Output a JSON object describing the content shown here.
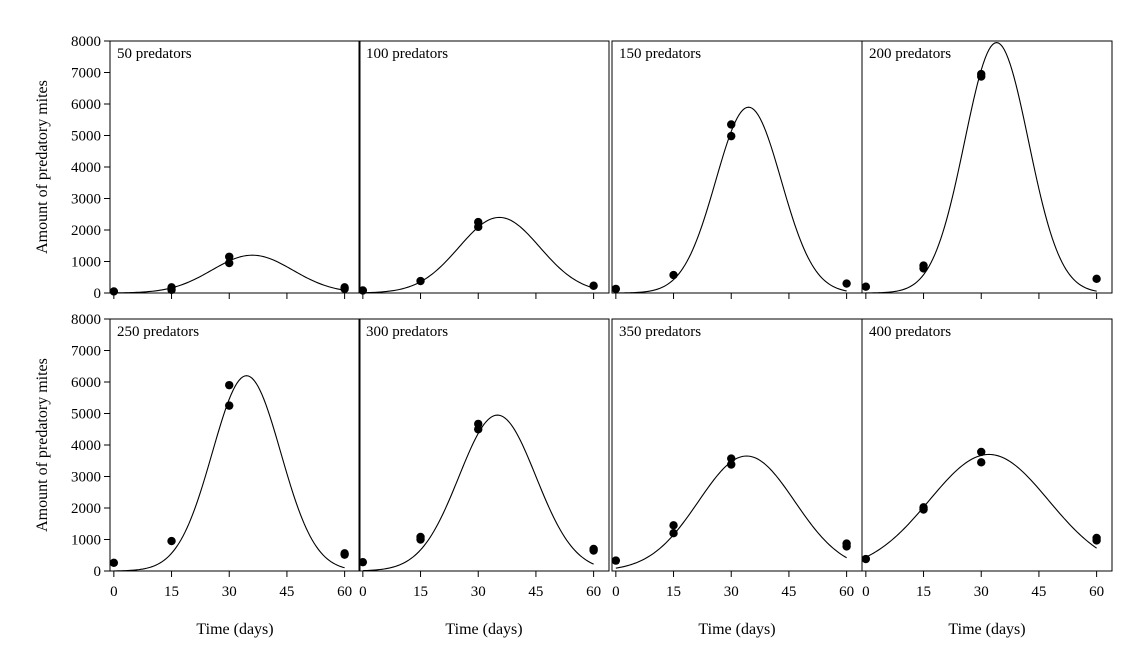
{
  "chart_data": {
    "type": "scatter",
    "ylabel": "Amount of predatory mites",
    "xlabel": "Time (days)",
    "x_ticks": [
      "0",
      "15",
      "30",
      "45",
      "60"
    ],
    "y_ticks": [
      "0",
      "1000",
      "2000",
      "3000",
      "4000",
      "5000",
      "6000",
      "7000",
      "8000"
    ],
    "xlim": [
      -1,
      64
    ],
    "ylim": [
      0,
      8000
    ],
    "colors": {
      "points": "#000000",
      "curve": "#000000",
      "frame": "#000000"
    },
    "panels": [
      {
        "title": "50 predators",
        "points": [
          [
            0,
            50
          ],
          [
            15,
            100
          ],
          [
            15,
            180
          ],
          [
            30,
            950
          ],
          [
            30,
            1150
          ],
          [
            60,
            130
          ],
          [
            60,
            180
          ]
        ],
        "curve": {
          "a": 1200,
          "mu": 36,
          "sigma": 10.5
        }
      },
      {
        "title": "100 predators",
        "points": [
          [
            0,
            80
          ],
          [
            15,
            380
          ],
          [
            30,
            2100
          ],
          [
            30,
            2250
          ],
          [
            60,
            230
          ]
        ],
        "curve": {
          "a": 2400,
          "mu": 35.5,
          "sigma": 10.5
        }
      },
      {
        "title": "150 predators",
        "points": [
          [
            0,
            130
          ],
          [
            15,
            570
          ],
          [
            30,
            4980
          ],
          [
            30,
            5350
          ],
          [
            60,
            300
          ]
        ],
        "curve": {
          "a": 5900,
          "mu": 34.5,
          "sigma": 8.5
        }
      },
      {
        "title": "200 predators",
        "points": [
          [
            0,
            200
          ],
          [
            15,
            780
          ],
          [
            15,
            870
          ],
          [
            30,
            6870
          ],
          [
            30,
            6950
          ],
          [
            60,
            450
          ]
        ],
        "curve": {
          "a": 7950,
          "mu": 34,
          "sigma": 8.3
        }
      },
      {
        "title": "250 predators",
        "points": [
          [
            0,
            260
          ],
          [
            15,
            950
          ],
          [
            30,
            5250
          ],
          [
            30,
            5900
          ],
          [
            60,
            520
          ],
          [
            60,
            560
          ]
        ],
        "curve": {
          "a": 6200,
          "mu": 34.5,
          "sigma": 8.9
        }
      },
      {
        "title": "300 predators",
        "points": [
          [
            0,
            280
          ],
          [
            15,
            1000
          ],
          [
            15,
            1080
          ],
          [
            30,
            4500
          ],
          [
            30,
            4670
          ],
          [
            60,
            650
          ],
          [
            60,
            700
          ]
        ],
        "curve": {
          "a": 4950,
          "mu": 35,
          "sigma": 10
        }
      },
      {
        "title": "350 predators",
        "points": [
          [
            0,
            330
          ],
          [
            15,
            1200
          ],
          [
            15,
            1450
          ],
          [
            30,
            3380
          ],
          [
            30,
            3570
          ],
          [
            60,
            780
          ],
          [
            60,
            870
          ]
        ],
        "curve": {
          "a": 3650,
          "mu": 34,
          "sigma": 12.5
        }
      },
      {
        "title": "400 predators",
        "points": [
          [
            0,
            380
          ],
          [
            15,
            1950
          ],
          [
            15,
            2020
          ],
          [
            30,
            3450
          ],
          [
            30,
            3780
          ],
          [
            60,
            970
          ],
          [
            60,
            1050
          ]
        ],
        "curve": {
          "a": 3700,
          "mu": 32,
          "sigma": 15.5
        }
      }
    ]
  }
}
